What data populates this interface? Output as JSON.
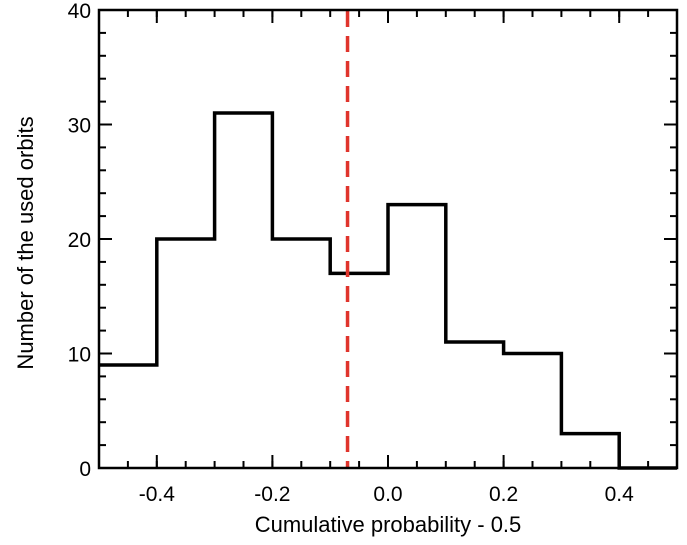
{
  "chart_data": {
    "type": "histogram",
    "xlabel": "Cumulative probability - 0.5",
    "ylabel": "Number of the used orbits",
    "xlim": [
      -0.5,
      0.5
    ],
    "ylim": [
      0,
      40
    ],
    "x_ticks": [
      -0.4,
      -0.2,
      0.0,
      0.2,
      0.4
    ],
    "x_tick_labels": [
      "-0.4",
      "-0.2",
      "0.0",
      "0.2",
      "0.4"
    ],
    "y_ticks": [
      0,
      10,
      20,
      30,
      40
    ],
    "y_tick_labels": [
      "0",
      "10",
      "20",
      "30",
      "40"
    ],
    "bin_edges": [
      -0.5,
      -0.4,
      -0.3,
      -0.2,
      -0.1,
      0.0,
      0.1,
      0.2,
      0.3,
      0.4,
      0.5
    ],
    "counts": [
      9,
      20,
      31,
      20,
      17,
      23,
      11,
      10,
      3,
      0
    ],
    "vline": {
      "x": -0.07,
      "color": "#e0342c",
      "style": "dashed"
    },
    "histogram_color": "#000000",
    "grid": false
  }
}
